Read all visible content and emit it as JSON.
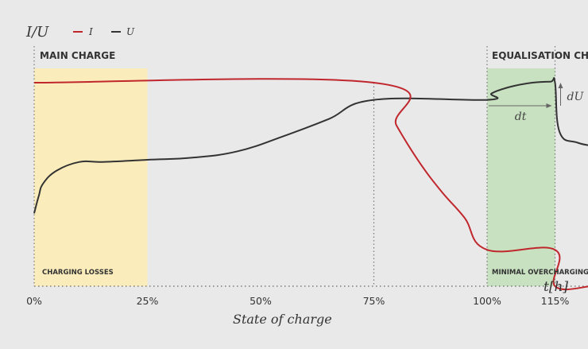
{
  "chart_data": {
    "type": "line",
    "ylabel": "I/U",
    "xlabel": "State of charge",
    "time_axis_label": "t[h]",
    "x_ticks": [
      "0%",
      "25%",
      "50%",
      "75%",
      "100%",
      "115%"
    ],
    "x_tick_values": [
      0,
      25,
      50,
      75,
      100,
      115
    ],
    "xlim": [
      0,
      125
    ],
    "ylim": [
      0,
      100
    ],
    "grid": false,
    "legend_position": "top-left",
    "series": [
      {
        "name": "I",
        "color": "#c0272d",
        "x": [
          0,
          75,
          80,
          85,
          90,
          95,
          100,
          115,
          115,
          123
        ],
        "y": [
          95,
          95,
          75,
          58,
          44,
          32,
          17,
          17,
          0,
          0
        ]
      },
      {
        "name": "U",
        "color": "#333333",
        "x": [
          0,
          1,
          2,
          5,
          10,
          15,
          25,
          35,
          45,
          55,
          65,
          75,
          100,
          101,
          105,
          110,
          114,
          115,
          116,
          120,
          125
        ],
        "y": [
          34,
          42,
          48,
          54,
          58,
          58,
          59,
          60,
          63,
          70,
          78,
          87,
          87,
          90,
          93,
          95,
          95.5,
          95,
          72,
          67,
          65
        ]
      }
    ],
    "regions": [
      {
        "label": "MAIN CHARGE",
        "x_start": 0,
        "x_end": 75
      },
      {
        "label": "EQUALISATION CHARGE",
        "x_start": 100,
        "x_end": 115
      },
      {
        "label": "CHARGING LOSSES",
        "x_start": 0,
        "x_end": 25,
        "color": "#fbedbb"
      },
      {
        "label": "MINIMAL OVERCHARGING",
        "x_start": 100,
        "x_end": 115,
        "color": "#c8e1c0"
      }
    ],
    "annotations": {
      "dt": "dt",
      "du": "dU"
    }
  }
}
